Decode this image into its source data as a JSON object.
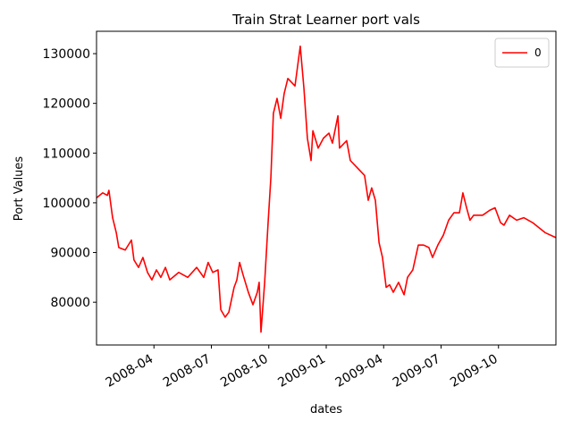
{
  "chart_data": {
    "type": "line",
    "title": "Train Strat Learner port vals",
    "x_label": "dates",
    "y_label": "Port Values",
    "x": [
      2008.0,
      2008.027,
      2008.047,
      2008.054,
      2008.07,
      2008.086,
      2008.097,
      2008.125,
      2008.152,
      2008.163,
      2008.183,
      2008.202,
      2008.222,
      2008.241,
      2008.261,
      2008.28,
      2008.3,
      2008.319,
      2008.358,
      2008.397,
      2008.436,
      2008.467,
      2008.486,
      2008.506,
      2008.529,
      2008.541,
      2008.56,
      2008.576,
      2008.599,
      2008.611,
      2008.623,
      2008.638,
      2008.661,
      2008.681,
      2008.7,
      2008.708,
      2008.716,
      2008.732,
      2008.747,
      2008.759,
      2008.77,
      2008.786,
      2008.802,
      2008.817,
      2008.833,
      2008.864,
      2008.887,
      2008.903,
      2008.918,
      2008.934,
      2008.942,
      2008.965,
      2008.988,
      2009.012,
      2009.027,
      2009.051,
      2009.058,
      2009.089,
      2009.105,
      2009.136,
      2009.167,
      2009.183,
      2009.198,
      2009.214,
      2009.23,
      2009.245,
      2009.261,
      2009.276,
      2009.292,
      2009.315,
      2009.339,
      2009.354,
      2009.377,
      2009.401,
      2009.424,
      2009.447,
      2009.463,
      2009.486,
      2009.51,
      2009.533,
      2009.556,
      2009.58,
      2009.595,
      2009.611,
      2009.626,
      2009.642,
      2009.681,
      2009.712,
      2009.735,
      2009.759,
      2009.774,
      2009.798,
      2009.829,
      2009.86,
      2009.899,
      2009.953,
      2010.0
    ],
    "series": [
      {
        "name": "0",
        "color": "#ff0000",
        "values": [
          101000,
          102000,
          101500,
          102500,
          97000,
          94000,
          91000,
          90500,
          92500,
          88500,
          87000,
          89000,
          86000,
          84500,
          86500,
          85000,
          87000,
          84500,
          86000,
          85000,
          87000,
          85000,
          88000,
          86000,
          86500,
          78500,
          77000,
          78000,
          83000,
          84500,
          88000,
          85500,
          82000,
          79500,
          82000,
          84000,
          74000,
          84000,
          96000,
          105000,
          118000,
          121000,
          117000,
          122000,
          125000,
          123500,
          131500,
          123000,
          113000,
          108500,
          114500,
          111000,
          113000,
          114000,
          112000,
          117500,
          111000,
          112500,
          108500,
          107000,
          105500,
          100500,
          103000,
          100500,
          92000,
          89000,
          83000,
          83500,
          82000,
          84000,
          81500,
          85000,
          86500,
          91500,
          91500,
          91000,
          89000,
          91500,
          93500,
          96500,
          98000,
          98000,
          102000,
          99000,
          96500,
          97500,
          97500,
          98500,
          99000,
          96000,
          95500,
          97500,
          96500,
          97000,
          96000,
          94000,
          93000
        ]
      }
    ],
    "xlim": [
      2008.0,
      2010.0
    ],
    "xticks": [
      {
        "value": 2008.25,
        "label": "2008-04"
      },
      {
        "value": 2008.5,
        "label": "2008-07"
      },
      {
        "value": 2008.75,
        "label": "2008-10"
      },
      {
        "value": 2009.0,
        "label": "2009-01"
      },
      {
        "value": 2009.25,
        "label": "2009-04"
      },
      {
        "value": 2009.5,
        "label": "2009-07"
      },
      {
        "value": 2009.75,
        "label": "2009-10"
      }
    ],
    "ylim": [
      71400,
      134500
    ],
    "yticks": [
      80000,
      90000,
      100000,
      110000,
      120000,
      130000
    ],
    "legend": "upper right",
    "grid": false
  }
}
